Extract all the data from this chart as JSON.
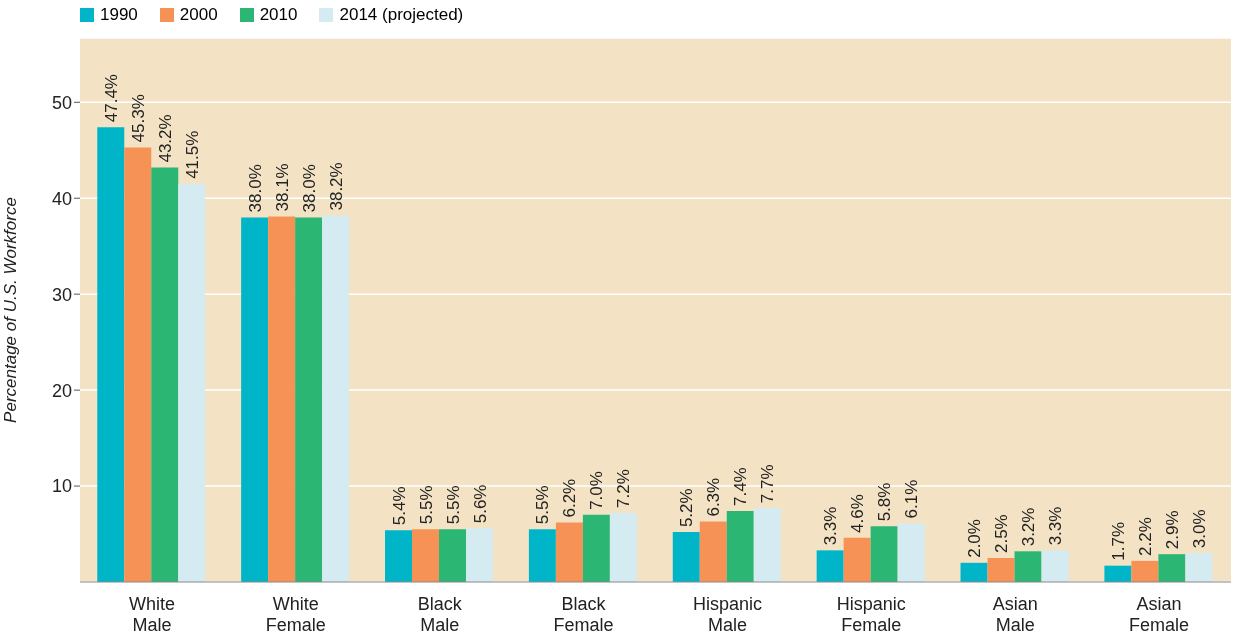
{
  "chart_data": {
    "type": "bar",
    "ylabel": "Percentage of U.S. Workforce",
    "categories": [
      "White Male",
      "White Female",
      "Black Male",
      "Black Female",
      "Hispanic Male",
      "Hispanic Female",
      "Asian Male",
      "Asian Female"
    ],
    "series": [
      {
        "name": "1990",
        "color": "#00b5c8",
        "values": [
          47.4,
          38.0,
          5.4,
          5.5,
          5.2,
          3.3,
          2.0,
          1.7
        ],
        "value_labels": [
          "47.4%",
          "38.0%",
          "5.4%",
          "5.5%",
          "5.2%",
          "3.3%",
          "2.0%",
          "1.7%"
        ]
      },
      {
        "name": "2000",
        "color": "#f79256",
        "values": [
          45.3,
          38.1,
          5.5,
          6.2,
          6.3,
          4.6,
          2.5,
          2.2
        ],
        "value_labels": [
          "45.3%",
          "38.1%",
          "5.5%",
          "6.2%",
          "6.3%",
          "4.6%",
          "2.5%",
          "2.2%"
        ]
      },
      {
        "name": "2010",
        "color": "#2bb673",
        "values": [
          43.2,
          38.0,
          5.5,
          7.0,
          7.4,
          5.8,
          3.2,
          2.9
        ],
        "value_labels": [
          "43.2%",
          "38.0%",
          "5.5%",
          "7.0%",
          "7.4%",
          "5.8%",
          "3.2%",
          "2.9%"
        ]
      },
      {
        "name": "2014 (projected)",
        "color": "#d4ebf1",
        "values": [
          41.5,
          38.2,
          5.6,
          7.2,
          7.7,
          6.1,
          3.3,
          3.0
        ],
        "value_labels": [
          "41.5%",
          "38.2%",
          "5.6%",
          "7.2%",
          "7.7%",
          "6.1%",
          "3.3%",
          "3.0%"
        ]
      }
    ],
    "ylim": [
      0,
      56.7
    ],
    "yticks": [
      10,
      20,
      30,
      40,
      50
    ],
    "grid": "y",
    "legend": "top left"
  }
}
